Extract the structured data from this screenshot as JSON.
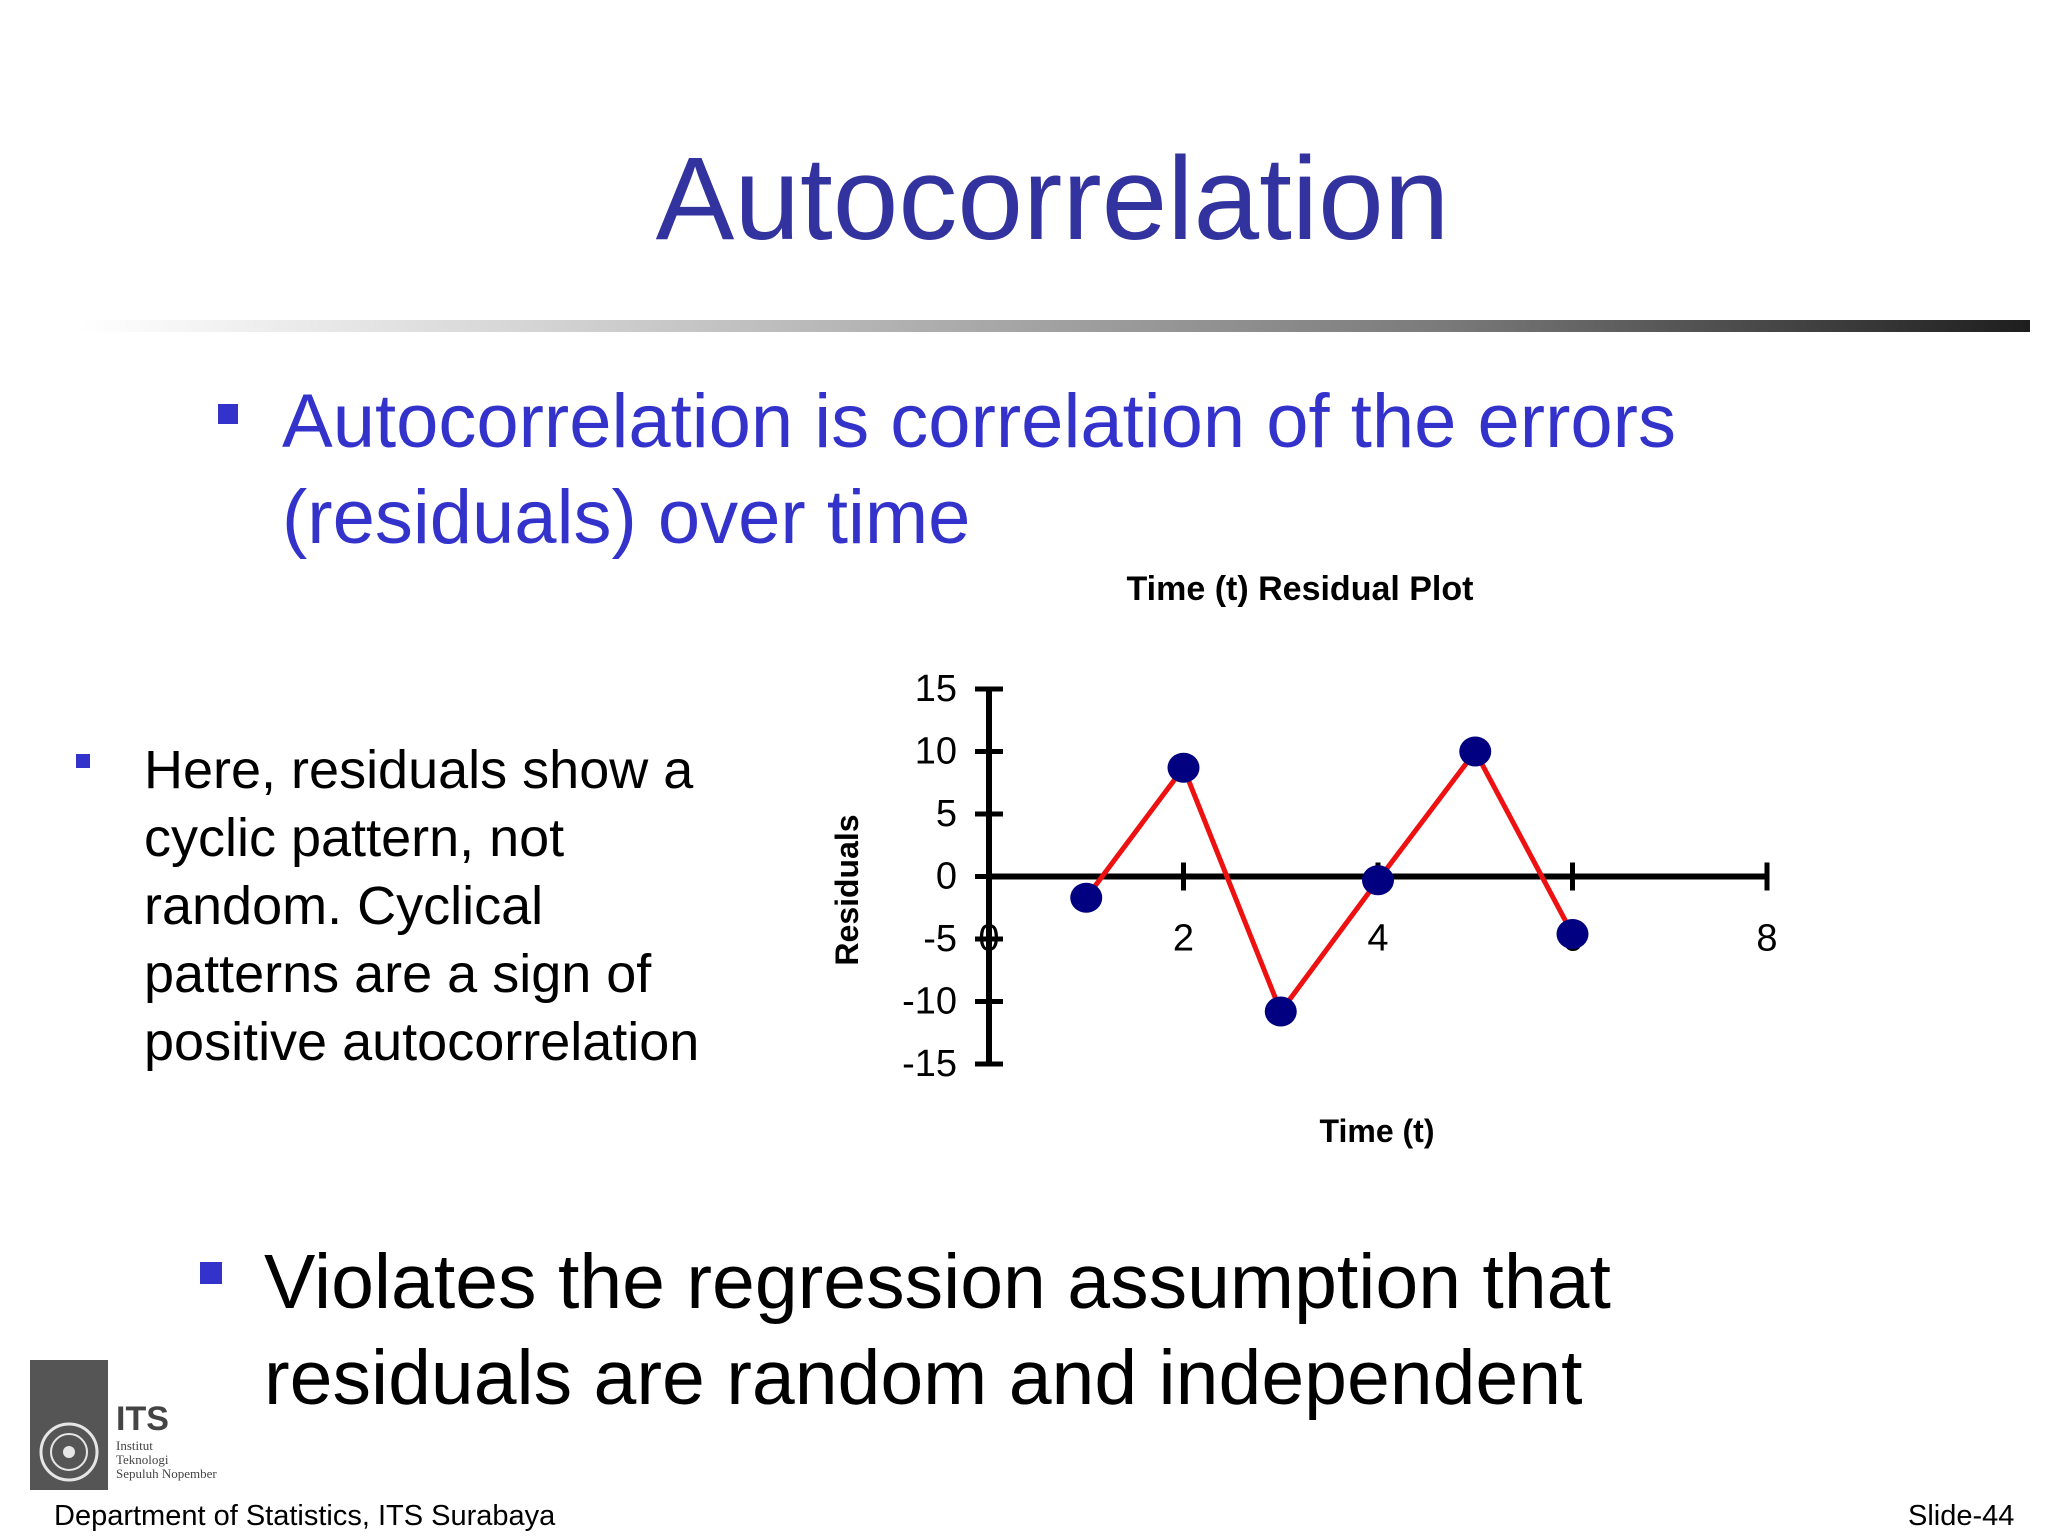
{
  "slide": {
    "title": "Autocorrelation",
    "bullet1": "Autocorrelation is correlation of the errors\n(residuals) over time",
    "side_bullet": "Here, residuals show a\ncyclic pattern, not\nrandom.  Cyclical\npatterns are a sign of\npositive autocorrelation",
    "bullet2": "Violates the regression assumption that\nresiduals are random and independent",
    "footer_left": "Department of  Statistics, ITS Surabaya",
    "footer_right": "Slide-44",
    "logo": {
      "mark": "ITS",
      "line1": "Institut",
      "line2": "Teknologi",
      "line3": "Sepuluh Nopember"
    }
  },
  "colors": {
    "title": "#3333a0",
    "bullet_text": "#3333cc",
    "line": "#ee1111",
    "marker": "#000080"
  },
  "chart_data": {
    "type": "line",
    "title": "Time (t)  Residual Plot",
    "xlabel": "Time (t)",
    "ylabel": "Residuals",
    "xlim": [
      0,
      8
    ],
    "ylim": [
      -15,
      15
    ],
    "xticks": [
      "0",
      "2",
      "4",
      "6",
      "8"
    ],
    "yticks": [
      "15",
      "10",
      "5",
      "0",
      "-5",
      "-10",
      "-15"
    ],
    "x": [
      1,
      2,
      3,
      4,
      5,
      6
    ],
    "series": [
      {
        "values": [
          -1.7,
          8.7,
          -10.8,
          -0.3,
          10.0,
          -4.6
        ]
      }
    ],
    "grid": false,
    "legend": "none"
  }
}
